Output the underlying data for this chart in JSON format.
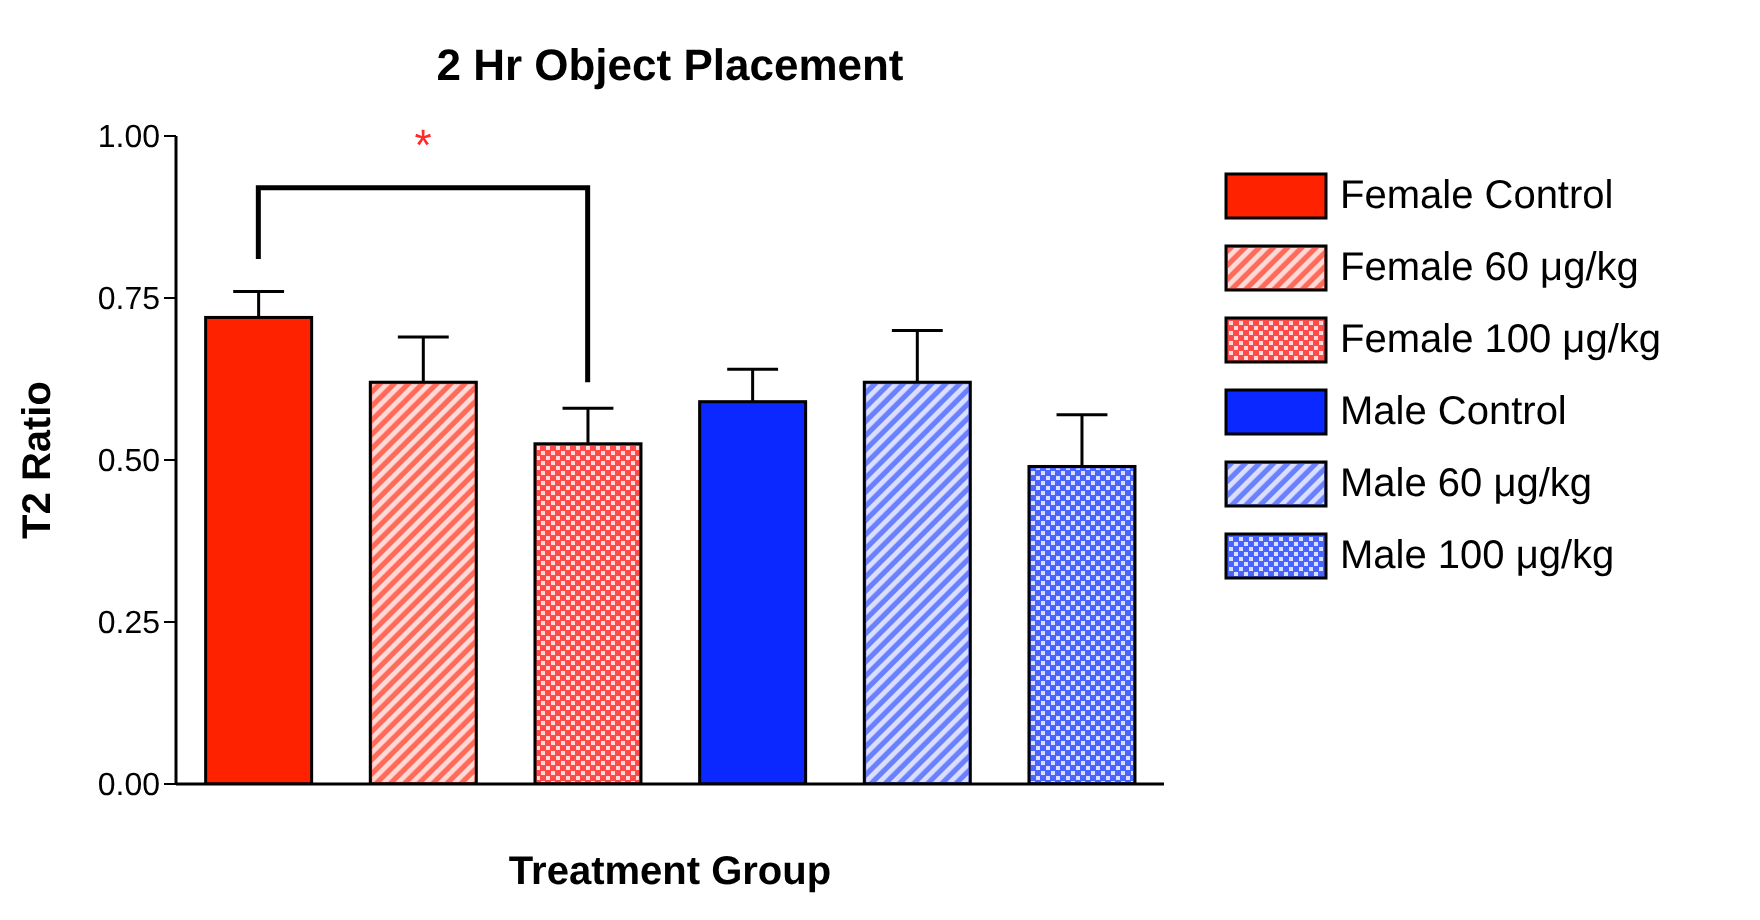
{
  "chart_data": {
    "type": "bar",
    "title": "2 Hr Object Placement",
    "xlabel": "Treatment Group",
    "ylabel": "T2 Ratio",
    "categories": [
      null,
      null,
      null,
      null,
      null,
      null
    ],
    "stacked": true,
    "series": [
      {
        "name": "Female Control",
        "color": "#ff2200",
        "values": [
          0.72,
          null,
          null,
          null,
          null,
          null
        ],
        "errors": [
          [
            0.72,
            0.76
          ],
          null,
          null,
          null,
          null,
          null
        ]
      },
      {
        "name": "Female 60 μg/kg",
        "color": "#ff6a5a",
        "values": [
          null,
          0.62,
          null,
          null,
          null,
          null
        ],
        "errors": [
          null,
          [
            0.62,
            0.69
          ],
          null,
          null,
          null,
          null
        ]
      },
      {
        "name": "Female 100 μg/kg",
        "color": "#ff4a4a",
        "values": [
          null,
          null,
          0.525,
          null,
          null,
          null
        ],
        "errors": [
          null,
          null,
          [
            0.525,
            0.58
          ],
          null,
          null,
          null
        ]
      },
      {
        "name": "Male Control",
        "color": "#0a28ff",
        "values": [
          null,
          null,
          null,
          0.59,
          null,
          null
        ],
        "errors": [
          null,
          null,
          null,
          [
            0.59,
            0.64
          ],
          null,
          null
        ]
      },
      {
        "name": "Male 60 μg/kg",
        "color": "#6a80ff",
        "values": [
          null,
          null,
          null,
          null,
          0.62,
          null
        ],
        "errors": [
          null,
          null,
          null,
          null,
          [
            0.62,
            0.7
          ],
          null
        ]
      },
      {
        "name": "Male 100 μg/kg",
        "color": "#4a64ff",
        "values": [
          null,
          null,
          null,
          null,
          null,
          0.49
        ],
        "errors": [
          null,
          null,
          null,
          null,
          null,
          [
            0.49,
            0.57
          ]
        ]
      }
    ],
    "ylim": [
      0,
      1
    ],
    "yticks": [
      {
        "value": 0,
        "label": "0.00"
      },
      {
        "value": 0.25,
        "label": "0.25"
      },
      {
        "value": 0.5,
        "label": "0.50"
      },
      {
        "value": 0.75,
        "label": "0.75"
      },
      {
        "value": 1,
        "label": "1.00"
      }
    ],
    "grid": false,
    "legend": "right",
    "annotations": [
      "*"
    ]
  }
}
